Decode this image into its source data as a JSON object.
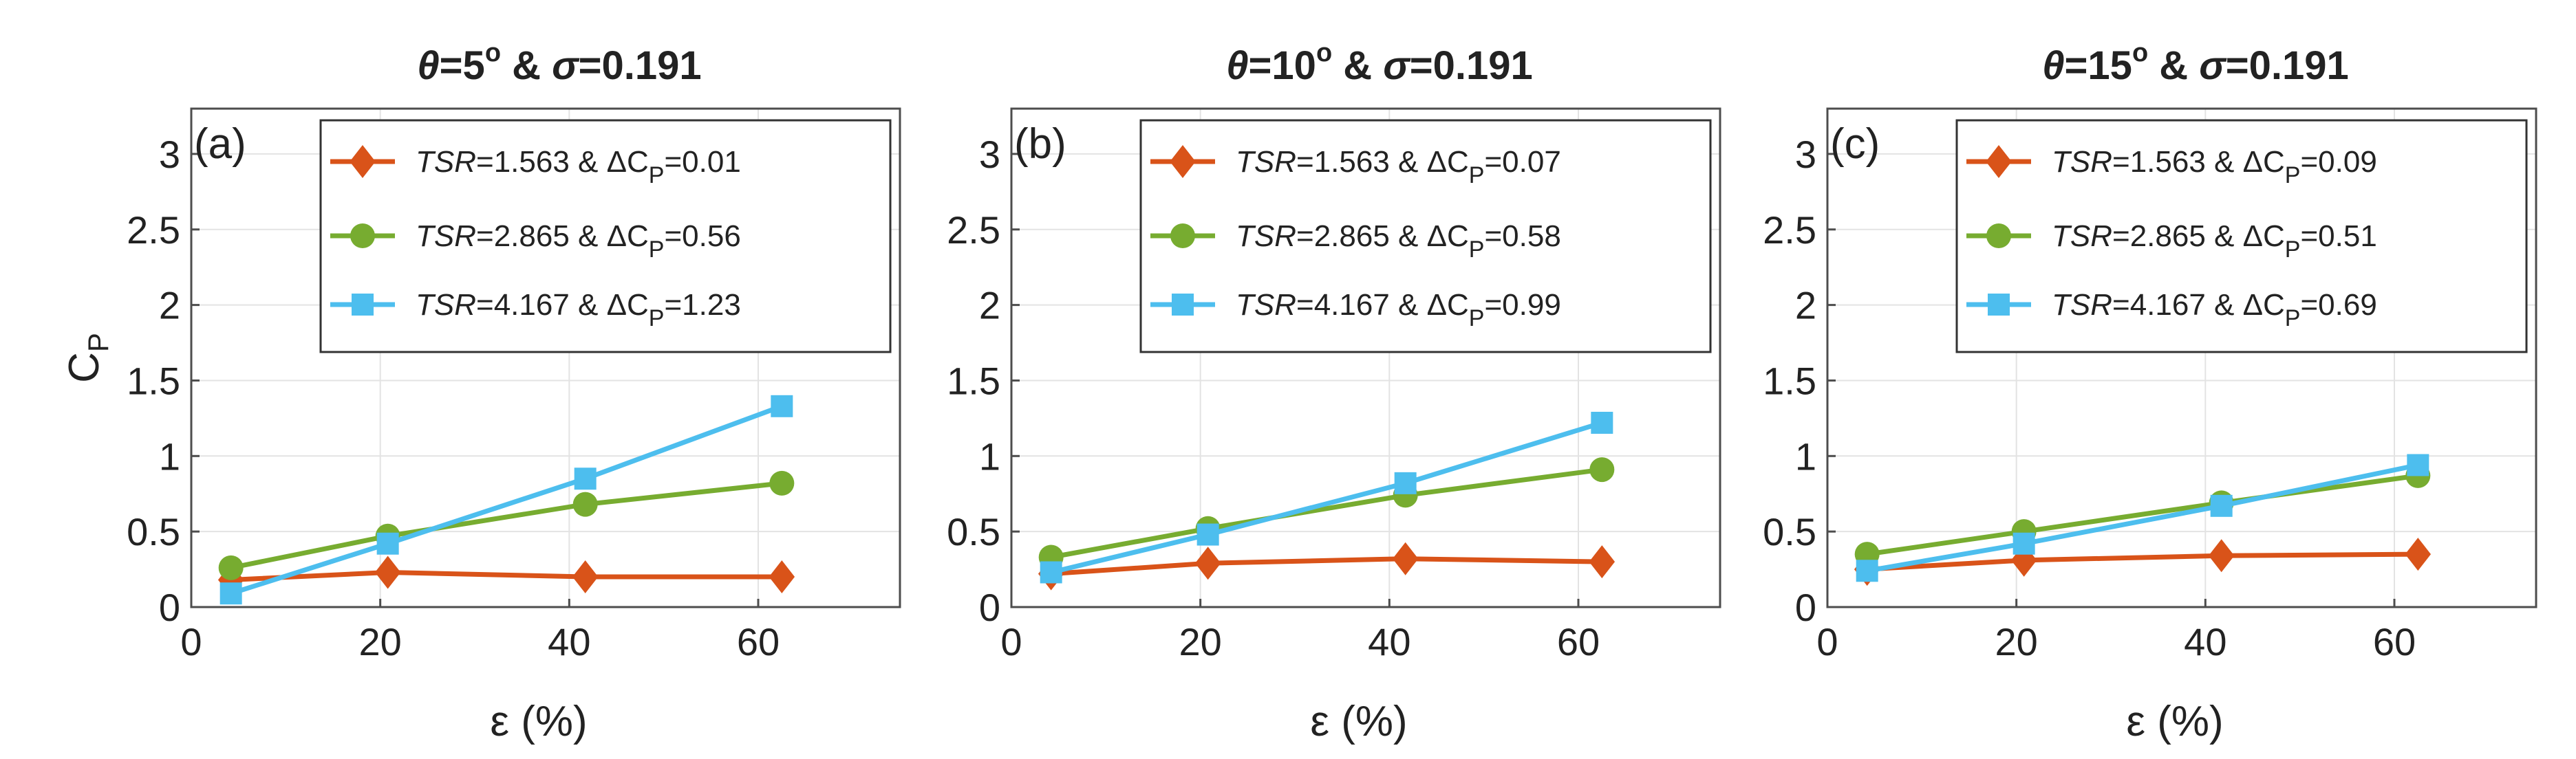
{
  "colors": {
    "series1": "#d95319",
    "series2": "#77ac30",
    "series3": "#4dbeee"
  },
  "chart_data": [
    {
      "type": "line",
      "label": "(a)",
      "title_theta_symbol": "θ",
      "title_theta": "=5",
      "title_degree": "o",
      "title_amp": "&",
      "title_sigma_symbol": "σ",
      "title_sigma": "=0.191",
      "xlabel": "ε (%)",
      "ylabel": "C",
      "ylabel_sub": "P",
      "xlim": [
        0,
        75
      ],
      "ylim": [
        0,
        3.3
      ],
      "xticks": [
        0,
        20,
        40,
        60
      ],
      "yticks": [
        0,
        0.5,
        1,
        1.5,
        2,
        2.5,
        3
      ],
      "xtick_labels": [
        "0",
        "20",
        "40",
        "60"
      ],
      "ytick_labels": [
        "0",
        "0.5",
        "1",
        "1.5",
        "2",
        "2.5",
        "3"
      ],
      "legend_position": "top-right",
      "x": [
        4.2,
        20.8,
        41.7,
        62.5
      ],
      "series": [
        {
          "tsr_label": "TSR",
          "tsr": "=1.563 & ",
          "delta": "ΔC",
          "delta_sub": "P",
          "delta_value": "=0.01",
          "marker": "diamond",
          "values": [
            0.18,
            0.23,
            0.2,
            0.2
          ]
        },
        {
          "tsr_label": "TSR",
          "tsr": "=2.865 & ",
          "delta": "ΔC",
          "delta_sub": "P",
          "delta_value": "=0.56",
          "marker": "circle",
          "values": [
            0.26,
            0.47,
            0.68,
            0.82
          ]
        },
        {
          "tsr_label": "TSR",
          "tsr": "=4.167 & ",
          "delta": "ΔC",
          "delta_sub": "P",
          "delta_value": "=1.23",
          "marker": "square",
          "values": [
            0.09,
            0.42,
            0.85,
            1.33
          ]
        }
      ]
    },
    {
      "type": "line",
      "label": "(b)",
      "title_theta_symbol": "θ",
      "title_theta": "=10",
      "title_degree": "o",
      "title_amp": "&",
      "title_sigma_symbol": "σ",
      "title_sigma": "=0.191",
      "xlabel": "ε (%)",
      "ylabel": "",
      "ylabel_sub": "",
      "xlim": [
        0,
        75
      ],
      "ylim": [
        0,
        3.3
      ],
      "xticks": [
        0,
        20,
        40,
        60
      ],
      "yticks": [
        0,
        0.5,
        1,
        1.5,
        2,
        2.5,
        3
      ],
      "xtick_labels": [
        "0",
        "20",
        "40",
        "60"
      ],
      "ytick_labels": [
        "0",
        "0.5",
        "1",
        "1.5",
        "2",
        "2.5",
        "3"
      ],
      "legend_position": "top-right",
      "x": [
        4.2,
        20.8,
        41.7,
        62.5
      ],
      "series": [
        {
          "tsr_label": "TSR",
          "tsr": "=1.563 & ",
          "delta": "ΔC",
          "delta_sub": "P",
          "delta_value": "=0.07",
          "marker": "diamond",
          "values": [
            0.22,
            0.29,
            0.32,
            0.3
          ]
        },
        {
          "tsr_label": "TSR",
          "tsr": "=2.865 & ",
          "delta": "ΔC",
          "delta_sub": "P",
          "delta_value": "=0.58",
          "marker": "circle",
          "values": [
            0.33,
            0.52,
            0.74,
            0.91
          ]
        },
        {
          "tsr_label": "TSR",
          "tsr": "=4.167 & ",
          "delta": "ΔC",
          "delta_sub": "P",
          "delta_value": "=0.99",
          "marker": "square",
          "values": [
            0.23,
            0.48,
            0.82,
            1.22
          ]
        }
      ]
    },
    {
      "type": "line",
      "label": "(c)",
      "title_theta_symbol": "θ",
      "title_theta": "=15",
      "title_degree": "o",
      "title_amp": "&",
      "title_sigma_symbol": "σ",
      "title_sigma": "=0.191",
      "xlabel": "ε (%)",
      "ylabel": "",
      "ylabel_sub": "",
      "xlim": [
        0,
        75
      ],
      "ylim": [
        0,
        3.3
      ],
      "xticks": [
        0,
        20,
        40,
        60
      ],
      "yticks": [
        0,
        0.5,
        1,
        1.5,
        2,
        2.5,
        3
      ],
      "xtick_labels": [
        "0",
        "20",
        "40",
        "60"
      ],
      "ytick_labels": [
        "0",
        "0.5",
        "1",
        "1.5",
        "2",
        "2.5",
        "3"
      ],
      "legend_position": "top-right",
      "x": [
        4.2,
        20.8,
        41.7,
        62.5
      ],
      "series": [
        {
          "tsr_label": "TSR",
          "tsr": "=1.563 & ",
          "delta": "ΔC",
          "delta_sub": "P",
          "delta_value": "=0.09",
          "marker": "diamond",
          "values": [
            0.25,
            0.31,
            0.34,
            0.35
          ]
        },
        {
          "tsr_label": "TSR",
          "tsr": "=2.865 & ",
          "delta": "ΔC",
          "delta_sub": "P",
          "delta_value": "=0.51",
          "marker": "circle",
          "values": [
            0.35,
            0.5,
            0.69,
            0.87
          ]
        },
        {
          "tsr_label": "TSR",
          "tsr": "=4.167 & ",
          "delta": "ΔC",
          "delta_sub": "P",
          "delta_value": "=0.69",
          "marker": "square",
          "values": [
            0.24,
            0.42,
            0.67,
            0.94
          ]
        }
      ]
    }
  ]
}
